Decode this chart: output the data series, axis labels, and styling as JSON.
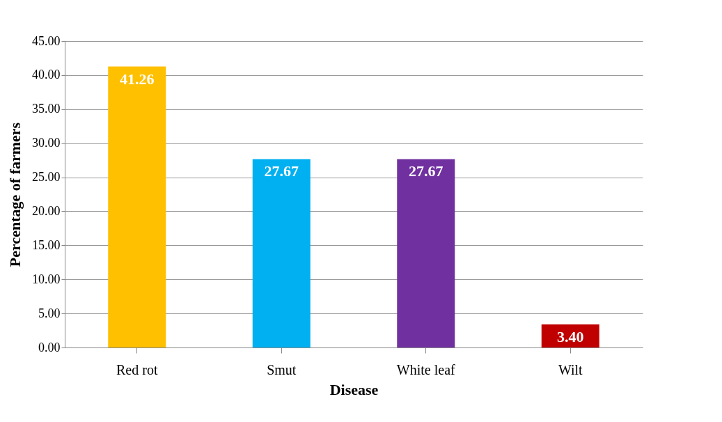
{
  "chart_data": {
    "type": "bar",
    "xlabel": "Disease",
    "ylabel": "Percentage of farmers",
    "categories": [
      "Red rot",
      "Smut",
      "White leaf",
      "Wilt"
    ],
    "values": [
      41.26,
      27.67,
      27.67,
      3.4
    ],
    "value_labels": [
      "41.26",
      "27.67",
      "27.67",
      "3.40"
    ],
    "colors": [
      "#ffc000",
      "#00b0f0",
      "#7030a0",
      "#c00000"
    ],
    "ylim": [
      0,
      45
    ],
    "yticks": [
      {
        "value": 0,
        "label": "0.00"
      },
      {
        "value": 5,
        "label": "5.00"
      },
      {
        "value": 10,
        "label": "10.00"
      },
      {
        "value": 15,
        "label": "15.00"
      },
      {
        "value": 20,
        "label": "20.00"
      },
      {
        "value": 25,
        "label": "25.00"
      },
      {
        "value": 30,
        "label": "30.00"
      },
      {
        "value": 35,
        "label": "35.00"
      },
      {
        "value": 40,
        "label": "40.00"
      },
      {
        "value": 45,
        "label": "45.00"
      }
    ],
    "grid": "y",
    "legend": false
  }
}
